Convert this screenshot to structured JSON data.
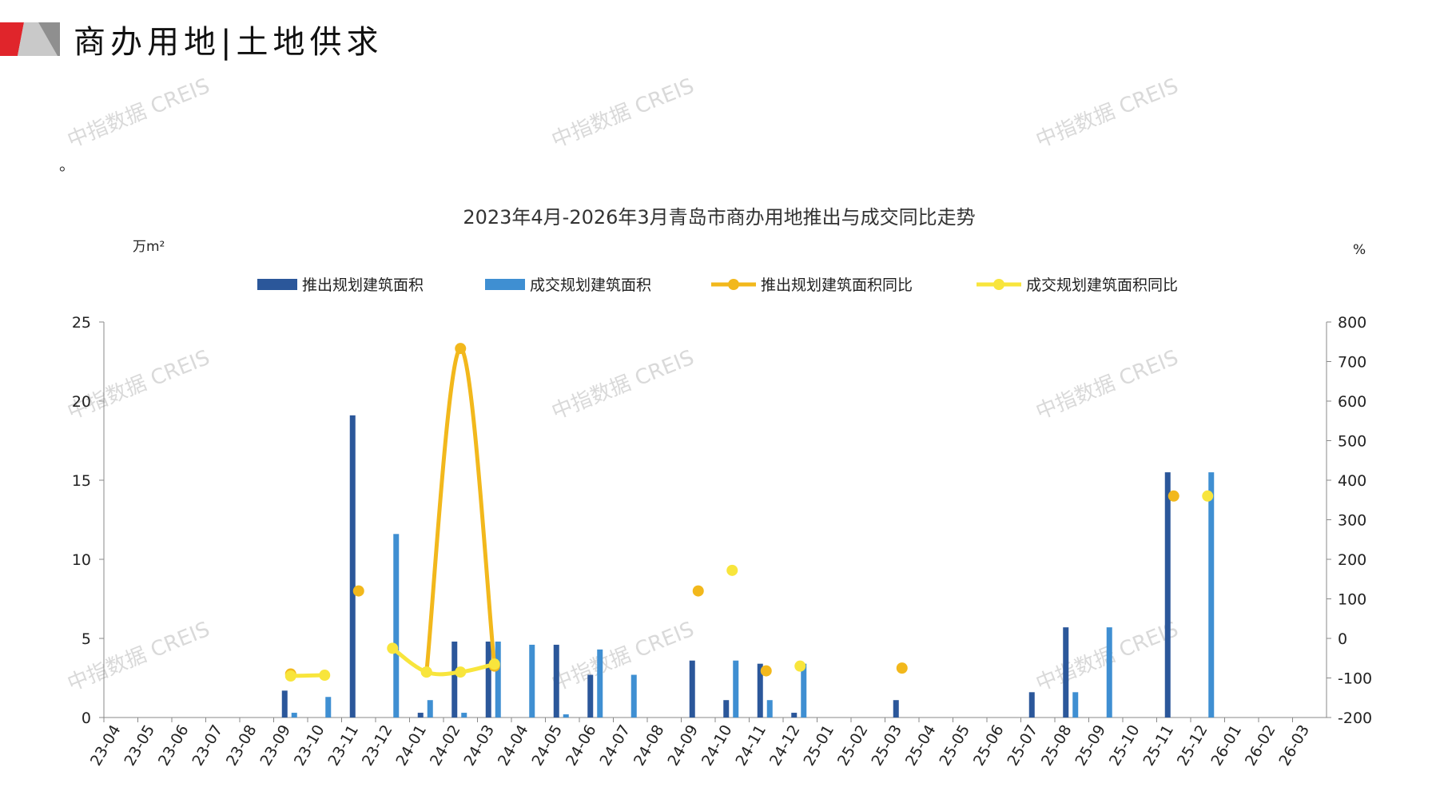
{
  "header": {
    "title": "商办用地|土地供求",
    "note": "。"
  },
  "watermark": {
    "text": "中指数据 CREIS"
  },
  "colors": {
    "push_bar": "#2b579a",
    "deal_bar": "#3f8fd2",
    "push_ratio": "#f2b81c",
    "deal_ratio": "#f8e53c",
    "logo_red": "#e0252b",
    "logo_gray": "#9a9a9a"
  },
  "chart_data": {
    "type": "bar",
    "title": "2023年4月-2026年3月青岛市商办用地推出与成交同比走势",
    "ylabel": "万m²",
    "y2label": "%",
    "ylim": [
      0,
      25
    ],
    "yticks": [
      0,
      5,
      10,
      15,
      20,
      25
    ],
    "y2lim": [
      -200,
      800
    ],
    "y2ticks": [
      -200,
      -100,
      0,
      100,
      200,
      300,
      400,
      500,
      600,
      700,
      800
    ],
    "legend_position": "top",
    "categories": [
      "23-04",
      "23-05",
      "23-06",
      "23-07",
      "23-08",
      "23-09",
      "23-10",
      "23-11",
      "23-12",
      "24-01",
      "24-02",
      "24-03",
      "24-04",
      "24-05",
      "24-06",
      "24-07",
      "24-08",
      "24-09",
      "24-10",
      "24-11",
      "24-12",
      "25-01",
      "25-02",
      "25-03",
      "25-04",
      "25-05",
      "25-06",
      "25-07",
      "25-08",
      "25-09",
      "25-10",
      "25-11",
      "25-12",
      "26-01",
      "26-02",
      "26-03"
    ],
    "series": [
      {
        "name": "推出规划建筑面积",
        "kind": "bar",
        "axis": "left",
        "values": [
          0,
          0,
          0,
          0,
          0,
          1.7,
          0,
          19.1,
          0,
          0.3,
          4.8,
          4.8,
          0,
          4.6,
          2.7,
          0,
          0,
          3.6,
          1.1,
          3.4,
          0.3,
          0,
          0,
          1.1,
          0,
          0,
          0,
          1.6,
          5.7,
          0,
          0,
          15.5,
          0,
          0,
          0,
          0
        ]
      },
      {
        "name": "成交规划建筑面积",
        "kind": "bar",
        "axis": "left",
        "values": [
          0,
          0,
          0,
          0,
          0,
          0.3,
          1.3,
          0,
          11.6,
          1.1,
          0.3,
          4.8,
          4.6,
          0.2,
          4.3,
          2.7,
          0,
          0,
          3.6,
          1.1,
          3.4,
          0,
          0,
          0,
          0,
          0,
          0,
          0,
          1.6,
          5.7,
          0,
          0,
          15.5,
          0,
          0,
          0
        ]
      },
      {
        "name": "推出规划建筑面积同比",
        "kind": "line",
        "axis": "right",
        "values": [
          null,
          null,
          null,
          null,
          null,
          -90,
          null,
          120,
          null,
          -85,
          733,
          -70,
          null,
          null,
          null,
          null,
          null,
          120,
          null,
          -82,
          null,
          null,
          null,
          -75,
          null,
          null,
          null,
          null,
          null,
          null,
          null,
          360,
          null,
          null,
          null,
          null
        ]
      },
      {
        "name": "成交规划建筑面积同比",
        "kind": "line",
        "axis": "right",
        "values": [
          null,
          null,
          null,
          null,
          null,
          -95,
          -93,
          null,
          -25,
          -85,
          -85,
          -65,
          null,
          null,
          null,
          null,
          null,
          null,
          172,
          null,
          -70,
          null,
          null,
          null,
          null,
          null,
          null,
          null,
          null,
          null,
          null,
          null,
          360,
          null,
          null,
          null
        ]
      }
    ]
  }
}
